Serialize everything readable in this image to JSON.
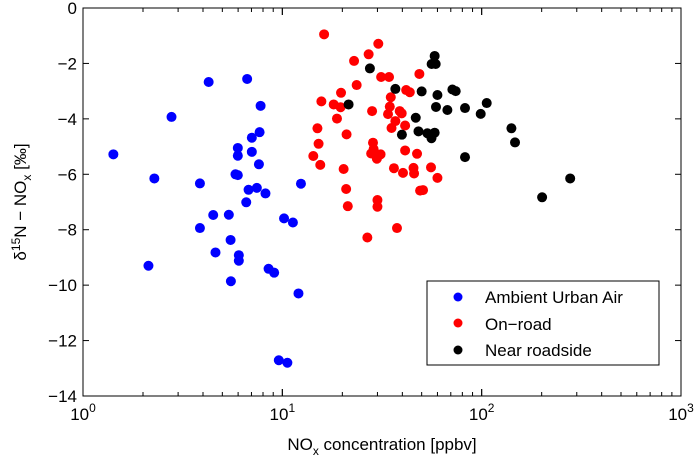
{
  "chart_data": {
    "type": "scatter",
    "title": "",
    "xlabel": {
      "main": "NO",
      "sub": "x",
      "rest": " concentration [ppbv]"
    },
    "ylabel": {
      "delta": "δ",
      "sup": "15",
      "mid": "N − NO",
      "sub": "x",
      "rest": " [‰]"
    },
    "xscale": "log",
    "xlim": [
      1,
      1000
    ],
    "ylim": [
      -14,
      0
    ],
    "xticks": [
      {
        "value": 1,
        "base": "10",
        "exp": "0"
      },
      {
        "value": 10,
        "base": "10",
        "exp": "1"
      },
      {
        "value": 100,
        "base": "10",
        "exp": "2"
      },
      {
        "value": 1000,
        "base": "10",
        "exp": "3"
      }
    ],
    "yticks": [
      {
        "value": 0,
        "label": "0"
      },
      {
        "value": -2,
        "label": "−2"
      },
      {
        "value": -4,
        "label": "−4"
      },
      {
        "value": -6,
        "label": "−6"
      },
      {
        "value": -8,
        "label": "−8"
      },
      {
        "value": -10,
        "label": "−10"
      },
      {
        "value": -12,
        "label": "−12"
      },
      {
        "value": -14,
        "label": "−14"
      }
    ],
    "grid": false,
    "legend_position": "bottom-right",
    "series": [
      {
        "name": "Ambient Urban Air",
        "color": "#0000ff",
        "points": [
          [
            1.42,
            -5.28
          ],
          [
            2.28,
            -6.15
          ],
          [
            2.78,
            -3.93
          ],
          [
            4.27,
            -2.67
          ],
          [
            6.66,
            -2.56
          ],
          [
            7.78,
            -3.53
          ],
          [
            3.86,
            -6.33
          ],
          [
            7.69,
            -4.48
          ],
          [
            7.03,
            -4.68
          ],
          [
            5.98,
            -5.05
          ],
          [
            5.98,
            -5.33
          ],
          [
            7.03,
            -5.19
          ],
          [
            7.63,
            -5.64
          ],
          [
            5.82,
            -6.0
          ],
          [
            5.98,
            -6.03
          ],
          [
            6.77,
            -6.56
          ],
          [
            7.45,
            -6.49
          ],
          [
            8.23,
            -6.69
          ],
          [
            6.59,
            -7.01
          ],
          [
            12.4,
            -6.34
          ],
          [
            4.5,
            -7.47
          ],
          [
            5.39,
            -7.46
          ],
          [
            10.2,
            -7.59
          ],
          [
            11.3,
            -7.74
          ],
          [
            3.86,
            -7.94
          ],
          [
            5.5,
            -8.37
          ],
          [
            4.62,
            -8.82
          ],
          [
            6.05,
            -8.92
          ],
          [
            6.05,
            -9.12
          ],
          [
            2.13,
            -9.3
          ],
          [
            8.53,
            -9.41
          ],
          [
            9.1,
            -9.55
          ],
          [
            5.52,
            -9.86
          ],
          [
            12.05,
            -10.3
          ],
          [
            9.6,
            -12.71
          ],
          [
            10.6,
            -12.8
          ]
        ]
      },
      {
        "name": "On−road",
        "color": "#ff0000",
        "points": [
          [
            16.2,
            -0.95
          ],
          [
            30.3,
            -1.29
          ],
          [
            27.1,
            -1.67
          ],
          [
            22.9,
            -1.91
          ],
          [
            31.3,
            -2.49
          ],
          [
            34.3,
            -2.49
          ],
          [
            48.7,
            -2.38
          ],
          [
            23.6,
            -2.78
          ],
          [
            19.7,
            -3.06
          ],
          [
            15.7,
            -3.37
          ],
          [
            18.1,
            -3.48
          ],
          [
            19.6,
            -3.58
          ],
          [
            18.8,
            -3.99
          ],
          [
            28.2,
            -3.72
          ],
          [
            41.8,
            -2.96
          ],
          [
            43.6,
            -3.04
          ],
          [
            35.0,
            -3.22
          ],
          [
            34.6,
            -3.56
          ],
          [
            33.9,
            -3.83
          ],
          [
            38.8,
            -3.72
          ],
          [
            39.7,
            -3.8
          ],
          [
            36.9,
            -4.08
          ],
          [
            35.3,
            -4.33
          ],
          [
            41.3,
            -4.24
          ],
          [
            15.0,
            -4.34
          ],
          [
            21.0,
            -4.56
          ],
          [
            15.2,
            -4.9
          ],
          [
            14.3,
            -5.34
          ],
          [
            15.5,
            -5.66
          ],
          [
            28.5,
            -4.86
          ],
          [
            28.7,
            -5.09
          ],
          [
            27.9,
            -5.25
          ],
          [
            31.1,
            -5.28
          ],
          [
            29.8,
            -5.44
          ],
          [
            41.3,
            -5.14
          ],
          [
            47.4,
            -5.26
          ],
          [
            20.3,
            -5.81
          ],
          [
            36.3,
            -5.78
          ],
          [
            40.3,
            -5.95
          ],
          [
            45.5,
            -5.77
          ],
          [
            45.8,
            -5.97
          ],
          [
            55.7,
            -5.75
          ],
          [
            60.0,
            -6.13
          ],
          [
            20.9,
            -6.53
          ],
          [
            49.1,
            -6.59
          ],
          [
            50.8,
            -6.57
          ],
          [
            21.3,
            -7.15
          ],
          [
            30.0,
            -6.93
          ],
          [
            30.0,
            -7.17
          ],
          [
            37.6,
            -7.94
          ],
          [
            26.7,
            -8.28
          ]
        ]
      },
      {
        "name": "Near roadside",
        "color": "#000000",
        "points": [
          [
            21.5,
            -3.48
          ],
          [
            27.5,
            -2.18
          ],
          [
            58.1,
            -1.73
          ],
          [
            56.1,
            -2.02
          ],
          [
            58.8,
            -2.02
          ],
          [
            36.9,
            -2.92
          ],
          [
            50.0,
            -3.01
          ],
          [
            60.0,
            -3.14
          ],
          [
            71.3,
            -2.94
          ],
          [
            74.1,
            -3.0
          ],
          [
            59.0,
            -3.57
          ],
          [
            67.3,
            -3.68
          ],
          [
            82.5,
            -3.61
          ],
          [
            106,
            -3.43
          ],
          [
            98.9,
            -3.82
          ],
          [
            46.7,
            -3.96
          ],
          [
            39.8,
            -4.57
          ],
          [
            48.2,
            -4.45
          ],
          [
            53.4,
            -4.52
          ],
          [
            58.1,
            -4.5
          ],
          [
            56.0,
            -4.7
          ],
          [
            141,
            -4.34
          ],
          [
            147,
            -4.85
          ],
          [
            82.5,
            -5.38
          ],
          [
            278,
            -6.15
          ],
          [
            201,
            -6.83
          ]
        ]
      }
    ]
  }
}
